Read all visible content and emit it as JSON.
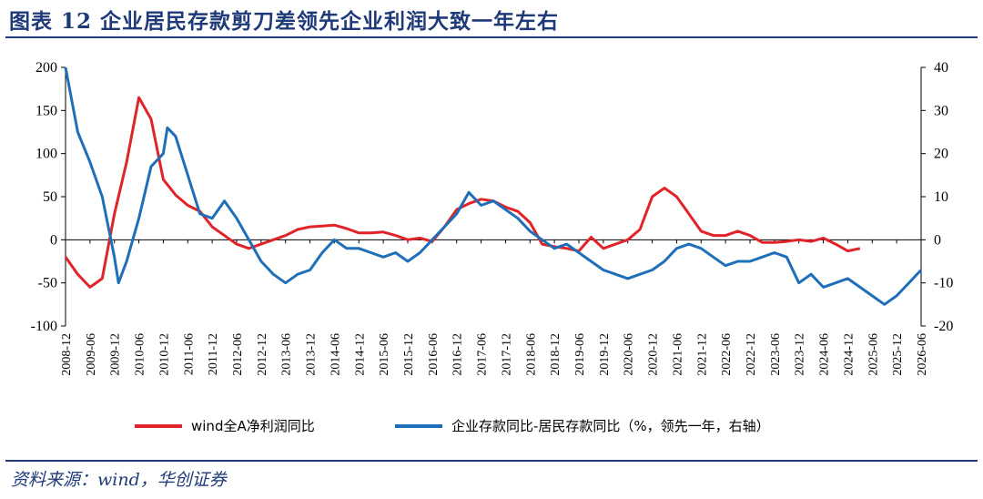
{
  "title": "图表 12   企业居民存款剪刀差领先企业利润大致一年左右",
  "source": "资料来源：wind，华创证券",
  "colors": {
    "accent": "#1f3a78",
    "red_series": "#e0242a",
    "blue_series": "#1f6fb8"
  },
  "chart_data": {
    "type": "line",
    "title": "",
    "xlabel": "",
    "ylabel": "",
    "y_left_lim": [
      -100,
      200
    ],
    "y_left_ticks": [
      -100,
      -50,
      0,
      50,
      100,
      150,
      200
    ],
    "y_right_lim": [
      -20,
      40
    ],
    "y_right_ticks": [
      -20,
      -10,
      0,
      10,
      20,
      30,
      40
    ],
    "x_start": "2008-12",
    "x_end": "2026-06",
    "x_tick_labels": [
      "2008-12",
      "2009-06",
      "2009-12",
      "2010-06",
      "2010-12",
      "2011-06",
      "2011-12",
      "2012-06",
      "2012-12",
      "2013-06",
      "2013-12",
      "2014-06",
      "2014-12",
      "2015-06",
      "2015-12",
      "2016-06",
      "2016-12",
      "2017-06",
      "2017-12",
      "2018-06",
      "2018-12",
      "2019-06",
      "2019-12",
      "2020-06",
      "2020-12",
      "2021-06",
      "2021-12",
      "2022-06",
      "2022-12",
      "2023-06",
      "2023-12",
      "2024-06",
      "2024-12",
      "2025-06",
      "2025-12",
      "2026-06"
    ],
    "grid": false,
    "legend_position": "bottom",
    "series": [
      {
        "name": "wind全A净利润同比",
        "axis": "left",
        "color": "#e0242a",
        "points": [
          [
            "2008-12",
            -20
          ],
          [
            "2009-03",
            -40
          ],
          [
            "2009-06",
            -55
          ],
          [
            "2009-09",
            -45
          ],
          [
            "2009-12",
            30
          ],
          [
            "2010-03",
            90
          ],
          [
            "2010-06",
            165
          ],
          [
            "2010-09",
            140
          ],
          [
            "2010-12",
            70
          ],
          [
            "2011-03",
            52
          ],
          [
            "2011-06",
            40
          ],
          [
            "2011-09",
            33
          ],
          [
            "2011-12",
            15
          ],
          [
            "2012-03",
            5
          ],
          [
            "2012-06",
            -5
          ],
          [
            "2012-09",
            -10
          ],
          [
            "2012-12",
            -5
          ],
          [
            "2013-03",
            0
          ],
          [
            "2013-06",
            5
          ],
          [
            "2013-09",
            12
          ],
          [
            "2013-12",
            15
          ],
          [
            "2014-03",
            16
          ],
          [
            "2014-06",
            17
          ],
          [
            "2014-09",
            13
          ],
          [
            "2014-12",
            8
          ],
          [
            "2015-03",
            8
          ],
          [
            "2015-06",
            9
          ],
          [
            "2015-09",
            5
          ],
          [
            "2015-12",
            0
          ],
          [
            "2016-03",
            2
          ],
          [
            "2016-06",
            -2
          ],
          [
            "2016-09",
            15
          ],
          [
            "2016-12",
            35
          ],
          [
            "2017-03",
            42
          ],
          [
            "2017-06",
            47
          ],
          [
            "2017-09",
            45
          ],
          [
            "2017-12",
            38
          ],
          [
            "2018-03",
            33
          ],
          [
            "2018-06",
            20
          ],
          [
            "2018-09",
            -5
          ],
          [
            "2018-12",
            -8
          ],
          [
            "2019-03",
            -10
          ],
          [
            "2019-06",
            -13
          ],
          [
            "2019-09",
            3
          ],
          [
            "2019-12",
            -10
          ],
          [
            "2020-03",
            -5
          ],
          [
            "2020-06",
            0
          ],
          [
            "2020-09",
            12
          ],
          [
            "2020-12",
            50
          ],
          [
            "2021-03",
            60
          ],
          [
            "2021-06",
            50
          ],
          [
            "2021-09",
            30
          ],
          [
            "2021-12",
            10
          ],
          [
            "2022-03",
            5
          ],
          [
            "2022-06",
            5
          ],
          [
            "2022-09",
            10
          ],
          [
            "2022-12",
            5
          ],
          [
            "2023-03",
            -3
          ],
          [
            "2023-06",
            -3
          ],
          [
            "2023-09",
            -2
          ],
          [
            "2023-12",
            0
          ],
          [
            "2024-03",
            -2
          ],
          [
            "2024-06",
            2
          ],
          [
            "2024-09",
            -5
          ],
          [
            "2024-12",
            -13
          ],
          [
            "2025-03",
            -10
          ]
        ]
      },
      {
        "name": "企业存款同比-居民存款同比（%，领先一年，右轴）",
        "axis": "right",
        "color": "#1f6fb8",
        "points": [
          [
            "2008-12",
            40
          ],
          [
            "2009-03",
            25
          ],
          [
            "2009-06",
            18
          ],
          [
            "2009-09",
            10
          ],
          [
            "2009-12",
            -4
          ],
          [
            "2010-01",
            -10
          ],
          [
            "2010-03",
            -5
          ],
          [
            "2010-06",
            5
          ],
          [
            "2010-09",
            17
          ],
          [
            "2010-12",
            20
          ],
          [
            "2011-01",
            26
          ],
          [
            "2011-03",
            24
          ],
          [
            "2011-06",
            15
          ],
          [
            "2011-09",
            6
          ],
          [
            "2011-12",
            5
          ],
          [
            "2012-03",
            9
          ],
          [
            "2012-06",
            5
          ],
          [
            "2012-09",
            0
          ],
          [
            "2012-12",
            -5
          ],
          [
            "2013-03",
            -8
          ],
          [
            "2013-06",
            -10
          ],
          [
            "2013-09",
            -8
          ],
          [
            "2013-12",
            -7
          ],
          [
            "2014-03",
            -3
          ],
          [
            "2014-06",
            0
          ],
          [
            "2014-09",
            -2
          ],
          [
            "2014-12",
            -2
          ],
          [
            "2015-03",
            -3
          ],
          [
            "2015-06",
            -4
          ],
          [
            "2015-09",
            -3
          ],
          [
            "2015-12",
            -5
          ],
          [
            "2016-03",
            -3
          ],
          [
            "2016-06",
            0
          ],
          [
            "2016-09",
            3
          ],
          [
            "2016-12",
            6
          ],
          [
            "2017-03",
            11
          ],
          [
            "2017-06",
            8
          ],
          [
            "2017-09",
            9
          ],
          [
            "2017-12",
            7
          ],
          [
            "2018-03",
            5
          ],
          [
            "2018-06",
            2
          ],
          [
            "2018-09",
            0
          ],
          [
            "2018-12",
            -2
          ],
          [
            "2019-03",
            -1
          ],
          [
            "2019-06",
            -3
          ],
          [
            "2019-09",
            -5
          ],
          [
            "2019-12",
            -7
          ],
          [
            "2020-03",
            -8
          ],
          [
            "2020-06",
            -9
          ],
          [
            "2020-09",
            -8
          ],
          [
            "2020-12",
            -7
          ],
          [
            "2021-03",
            -5
          ],
          [
            "2021-06",
            -2
          ],
          [
            "2021-09",
            -1
          ],
          [
            "2021-12",
            -2
          ],
          [
            "2022-03",
            -4
          ],
          [
            "2022-06",
            -6
          ],
          [
            "2022-09",
            -5
          ],
          [
            "2022-12",
            -5
          ],
          [
            "2023-03",
            -4
          ],
          [
            "2023-06",
            -3
          ],
          [
            "2023-09",
            -4
          ],
          [
            "2023-12",
            -10
          ],
          [
            "2024-03",
            -8
          ],
          [
            "2024-06",
            -11
          ],
          [
            "2024-09",
            -10
          ],
          [
            "2024-12",
            -9
          ],
          [
            "2025-03",
            -11
          ],
          [
            "2025-06",
            -13
          ],
          [
            "2025-09",
            -15
          ],
          [
            "2025-12",
            -13
          ],
          [
            "2026-03",
            -10
          ],
          [
            "2026-06",
            -7
          ]
        ]
      }
    ]
  }
}
